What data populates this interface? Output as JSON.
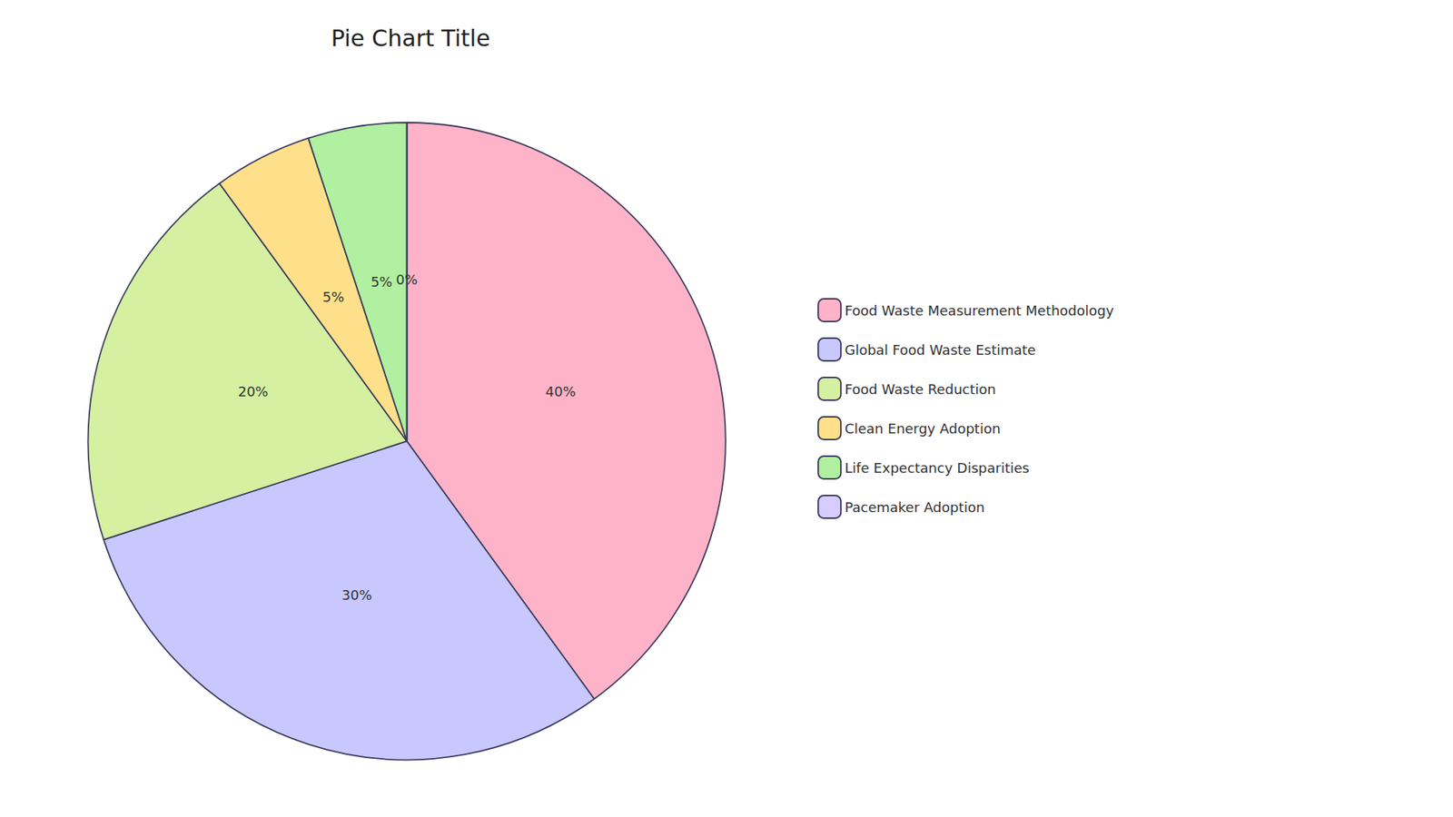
{
  "chart_data": {
    "type": "pie",
    "title": "Pie Chart Title",
    "categories": [
      "Food Waste Measurement Methodology",
      "Global Food Waste Estimate",
      "Food Waste Reduction",
      "Clean Energy Adoption",
      "Life Expectancy Disparities",
      "Pacemaker Adoption"
    ],
    "values": [
      40,
      30,
      20,
      5,
      5,
      0
    ],
    "value_labels": [
      "40%",
      "30%",
      "20%",
      "5%",
      "5%",
      "0%"
    ],
    "colors": [
      "#FFB3C8",
      "#C8C8FF",
      "#D4F0A0",
      "#FFE08A",
      "#B0F0A0",
      "#D8CCFF"
    ],
    "data_labels": true,
    "legend": "right"
  }
}
